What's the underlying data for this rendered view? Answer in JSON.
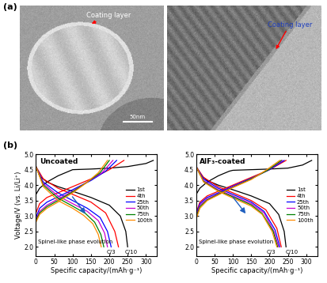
{
  "panel_labels": [
    "(a)",
    "(b)"
  ],
  "images": [
    {
      "annotations": [
        {
          "text": "Coating layer",
          "color": "#ffffff"
        }
      ],
      "scale_bar": "50nm"
    },
    {
      "annotations": [
        {
          "text": "Coating layer",
          "color": "#1f3fbf"
        }
      ]
    }
  ],
  "chart_data": [
    {
      "type": "line",
      "title": "Uncoated",
      "xlabel": "Specific capacity/(mAh·g⁻¹)",
      "ylabel": "Voltage/V (vs. Li/Li⁺)",
      "xlim": [
        0,
        330
      ],
      "xticks": [
        0,
        50,
        100,
        150,
        200,
        250,
        300
      ],
      "ylim": [
        1.7,
        5.0
      ],
      "yticks": [
        2.0,
        2.5,
        3.0,
        3.5,
        4.0,
        4.5,
        5.0
      ],
      "legend": "center right",
      "annotations": [
        "Spinel-like phase evolution",
        "C/3",
        "C/10"
      ],
      "series": [
        {
          "name": "1st",
          "color": "#000000",
          "charge": {
            "x": [
              0,
              10,
              30,
              60,
              90,
              100,
              150,
              200,
              250,
              300,
              320
            ],
            "values": [
              3.7,
              3.9,
              4.1,
              4.3,
              4.45,
              4.5,
              4.52,
              4.55,
              4.6,
              4.7,
              4.8
            ]
          },
          "discharge": {
            "x": [
              0,
              10,
              30,
              60,
              100,
              150,
              200,
              230,
              245,
              250
            ],
            "values": [
              4.6,
              4.3,
              4.1,
              3.95,
              3.8,
              3.6,
              3.35,
              3.0,
              2.5,
              2.0
            ]
          }
        },
        {
          "name": "4th",
          "color": "#ff0000",
          "charge": {
            "x": [
              0,
              10,
              30,
              60,
              100,
              150,
              200,
              240
            ],
            "values": [
              3.1,
              3.4,
              3.6,
              3.75,
              3.95,
              4.2,
              4.5,
              4.8
            ]
          },
          "discharge": {
            "x": [
              0,
              20,
              60,
              100,
              150,
              190,
              215,
              225
            ],
            "values": [
              4.6,
              4.2,
              3.9,
              3.7,
              3.45,
              3.1,
              2.5,
              2.0
            ]
          }
        },
        {
          "name": "25th",
          "color": "#0000ff",
          "charge": {
            "x": [
              0,
              10,
              30,
              60,
              100,
              150,
              190,
              220
            ],
            "values": [
              2.95,
              3.25,
              3.45,
              3.62,
              3.85,
              4.15,
              4.45,
              4.8
            ]
          },
          "discharge": {
            "x": [
              0,
              20,
              60,
              100,
              140,
              175,
              195,
              205
            ],
            "values": [
              4.6,
              4.1,
              3.75,
              3.5,
              3.25,
              2.95,
              2.5,
              2.0
            ]
          }
        },
        {
          "name": "50th",
          "color": "#cc00cc",
          "charge": {
            "x": [
              0,
              10,
              30,
              60,
              100,
              140,
              180,
              210
            ],
            "values": [
              2.9,
              3.15,
              3.35,
              3.55,
              3.8,
              4.1,
              4.4,
              4.8
            ]
          },
          "discharge": {
            "x": [
              0,
              20,
              60,
              100,
              140,
              170,
              187,
              195
            ],
            "values": [
              4.6,
              4.05,
              3.65,
              3.4,
              3.15,
              2.85,
              2.45,
              2.0
            ]
          }
        },
        {
          "name": "75th",
          "color": "#008000",
          "charge": {
            "x": [
              0,
              10,
              30,
              60,
              100,
              140,
              175,
              200
            ],
            "values": [
              2.85,
              3.1,
              3.3,
              3.5,
              3.78,
              4.1,
              4.4,
              4.8
            ]
          },
          "discharge": {
            "x": [
              0,
              20,
              60,
              100,
              135,
              160,
              177,
              185
            ],
            "values": [
              4.6,
              4.0,
              3.58,
              3.32,
              3.08,
              2.8,
              2.4,
              2.0
            ]
          }
        },
        {
          "name": "100th",
          "color": "#ff8c00",
          "charge": {
            "x": [
              0,
              10,
              30,
              60,
              100,
              135,
              170,
              195
            ],
            "values": [
              2.8,
              3.05,
              3.25,
              3.45,
              3.75,
              4.05,
              4.4,
              4.8
            ]
          },
          "discharge": {
            "x": [
              0,
              20,
              60,
              100,
              130,
              155,
              170,
              178
            ],
            "values": [
              4.6,
              3.95,
              3.5,
              3.25,
              3.02,
              2.75,
              2.4,
              2.0
            ]
          }
        }
      ]
    },
    {
      "type": "line",
      "title": "AlF₃-coated",
      "xlabel": "Specific capacity/(mAh·g⁻¹)",
      "xlim": [
        0,
        330
      ],
      "xticks": [
        0,
        50,
        100,
        150,
        200,
        250,
        300
      ],
      "ylim": [
        1.7,
        5.0
      ],
      "yticks": [
        2.0,
        2.5,
        3.0,
        3.5,
        4.0,
        4.5,
        5.0
      ],
      "legend": "center right",
      "annotations": [
        "Spinel-like phase evolution",
        "C/3",
        "C/10"
      ],
      "series": [
        {
          "name": "1st",
          "color": "#000000",
          "charge": {
            "x": [
              0,
              10,
              30,
              60,
              90,
              100,
              150,
              200,
              250,
              290,
              315
            ],
            "values": [
              3.7,
              3.9,
              4.1,
              4.3,
              4.45,
              4.48,
              4.5,
              4.52,
              4.55,
              4.65,
              4.8
            ]
          },
          "discharge": {
            "x": [
              0,
              10,
              30,
              60,
              100,
              150,
              200,
              225,
              240,
              245
            ],
            "values": [
              4.6,
              4.35,
              4.15,
              4.0,
              3.85,
              3.65,
              3.4,
              3.05,
              2.5,
              2.0
            ]
          }
        },
        {
          "name": "4th",
          "color": "#ff0000",
          "charge": {
            "x": [
              0,
              10,
              30,
              60,
              100,
              150,
              200,
              245
            ],
            "values": [
              3.1,
              3.45,
              3.65,
              3.8,
              4.0,
              4.25,
              4.5,
              4.8
            ]
          },
          "discharge": {
            "x": [
              0,
              20,
              60,
              100,
              150,
              190,
              220,
              232
            ],
            "values": [
              4.6,
              4.25,
              3.95,
              3.75,
              3.5,
              3.2,
              2.6,
              2.0
            ]
          }
        },
        {
          "name": "25th",
          "color": "#0000ff",
          "charge": {
            "x": [
              0,
              10,
              30,
              60,
              100,
              150,
              200,
              240
            ],
            "values": [
              3.05,
              3.4,
              3.6,
              3.75,
              3.97,
              4.22,
              4.5,
              4.8
            ]
          },
          "discharge": {
            "x": [
              0,
              20,
              60,
              100,
              150,
              185,
              215,
              228
            ],
            "values": [
              4.6,
              4.2,
              3.9,
              3.7,
              3.45,
              3.15,
              2.55,
              2.0
            ]
          }
        },
        {
          "name": "50th",
          "color": "#cc00cc",
          "charge": {
            "x": [
              0,
              10,
              30,
              60,
              100,
              150,
              195,
              235
            ],
            "values": [
              3.0,
              3.35,
              3.55,
              3.72,
              3.95,
              4.2,
              4.48,
              4.8
            ]
          },
          "discharge": {
            "x": [
              0,
              20,
              60,
              100,
              150,
              185,
              212,
              225
            ],
            "values": [
              4.6,
              4.15,
              3.85,
              3.65,
              3.4,
              3.1,
              2.5,
              2.0
            ]
          }
        },
        {
          "name": "75th",
          "color": "#008000",
          "charge": {
            "x": [
              0,
              10,
              30,
              60,
              100,
              150,
              195,
              232
            ],
            "values": [
              2.95,
              3.3,
              3.52,
              3.7,
              3.93,
              4.2,
              4.48,
              4.8
            ]
          },
          "discharge": {
            "x": [
              0,
              20,
              60,
              100,
              150,
              180,
              210,
              222
            ],
            "values": [
              4.6,
              4.12,
              3.82,
              3.62,
              3.36,
              3.08,
              2.5,
              2.0
            ]
          }
        },
        {
          "name": "100th",
          "color": "#ff8c00",
          "charge": {
            "x": [
              0,
              10,
              30,
              60,
              100,
              150,
              190,
              228
            ],
            "values": [
              2.9,
              3.25,
              3.5,
              3.68,
              3.92,
              4.18,
              4.48,
              4.8
            ]
          },
          "discharge": {
            "x": [
              0,
              20,
              60,
              100,
              150,
              180,
              207,
              220
            ],
            "values": [
              4.6,
              4.1,
              3.8,
              3.58,
              3.32,
              3.05,
              2.5,
              2.0
            ]
          }
        }
      ]
    }
  ]
}
